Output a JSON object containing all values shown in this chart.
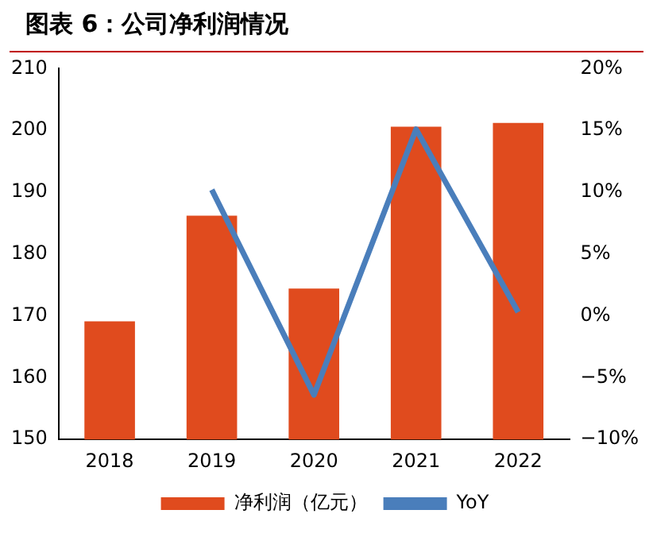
{
  "chart_data": {
    "type": "bar",
    "title": "图表 6：公司净利润情况",
    "categories": [
      "2018",
      "2019",
      "2020",
      "2021",
      "2022"
    ],
    "series": [
      {
        "name": "净利润（亿元）",
        "color": "#e04b1e",
        "values": [
          169.1,
          186.2,
          174.4,
          200.6,
          201.2
        ]
      },
      {
        "name": "YoY",
        "type": "line",
        "axis": "y2",
        "color": "#4a7ebb",
        "values": [
          null,
          10.2,
          -6.4,
          15.1,
          0.3
        ]
      }
    ],
    "ylim": [
      150,
      210
    ],
    "yticks": [
      150,
      160,
      170,
      180,
      190,
      200,
      210
    ],
    "y2lim": [
      -10,
      20
    ],
    "y2ticks": [
      {
        "value": -10,
        "label": "−10%"
      },
      {
        "value": -5,
        "label": "−5%"
      },
      {
        "value": 0,
        "label": "0%"
      },
      {
        "value": 5,
        "label": "5%"
      },
      {
        "value": 10,
        "label": "10%"
      },
      {
        "value": 15,
        "label": "15%"
      },
      {
        "value": 20,
        "label": "20%"
      }
    ],
    "grid": false,
    "legend": "bottom",
    "marker": "none"
  }
}
